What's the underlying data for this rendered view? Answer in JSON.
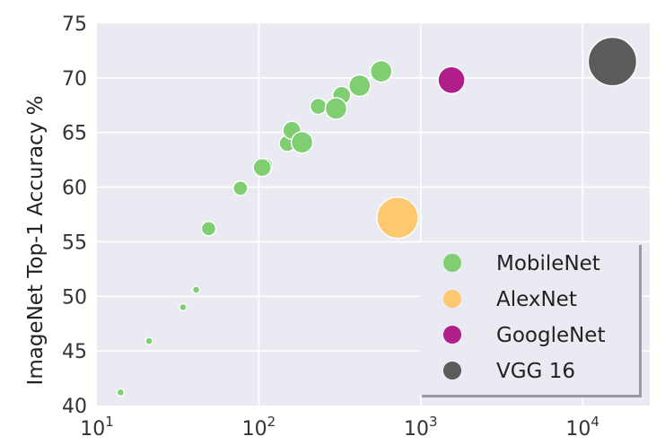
{
  "chart_data": {
    "type": "scatter",
    "title": "",
    "xlabel": "",
    "ylabel": "ImageNet Top-1 Accuracy %",
    "x_scale": "log",
    "xlim": [
      10,
      26000
    ],
    "ylim": [
      40,
      75
    ],
    "x_ticks": [
      {
        "value": 10,
        "base": "10",
        "exp": "1"
      },
      {
        "value": 100,
        "base": "10",
        "exp": "2"
      },
      {
        "value": 1000,
        "base": "10",
        "exp": "3"
      },
      {
        "value": 10000,
        "base": "10",
        "exp": "4"
      }
    ],
    "y_ticks": [
      "40",
      "45",
      "50",
      "55",
      "60",
      "65",
      "70",
      "75"
    ],
    "grid": true,
    "legend_position": "bottom-right",
    "series": [
      {
        "name": "MobileNet",
        "color": "#7fcf72",
        "points": [
          {
            "x": 14,
            "y": 41.2,
            "size": 4
          },
          {
            "x": 21,
            "y": 45.9,
            "size": 4
          },
          {
            "x": 34,
            "y": 49.0,
            "size": 4
          },
          {
            "x": 41,
            "y": 50.6,
            "size": 4
          },
          {
            "x": 49,
            "y": 56.2,
            "size": 8
          },
          {
            "x": 77,
            "y": 59.9,
            "size": 8
          },
          {
            "x": 110,
            "y": 62.0,
            "size": 8
          },
          {
            "x": 105,
            "y": 61.8,
            "size": 10
          },
          {
            "x": 150,
            "y": 64.0,
            "size": 9
          },
          {
            "x": 160,
            "y": 65.2,
            "size": 10
          },
          {
            "x": 185,
            "y": 64.1,
            "size": 12
          },
          {
            "x": 233,
            "y": 67.4,
            "size": 9
          },
          {
            "x": 325,
            "y": 68.4,
            "size": 10
          },
          {
            "x": 300,
            "y": 67.2,
            "size": 12
          },
          {
            "x": 420,
            "y": 69.3,
            "size": 12
          },
          {
            "x": 570,
            "y": 70.6,
            "size": 12
          }
        ]
      },
      {
        "name": "AlexNet",
        "color": "#fcc870",
        "points": [
          {
            "x": 720,
            "y": 57.2,
            "size": 23
          }
        ]
      },
      {
        "name": "GoogleNet",
        "color": "#b01e8c",
        "points": [
          {
            "x": 1550,
            "y": 69.8,
            "size": 15
          }
        ]
      },
      {
        "name": "VGG 16",
        "color": "#5b5b5b",
        "points": [
          {
            "x": 15300,
            "y": 71.5,
            "size": 27
          }
        ]
      }
    ]
  }
}
